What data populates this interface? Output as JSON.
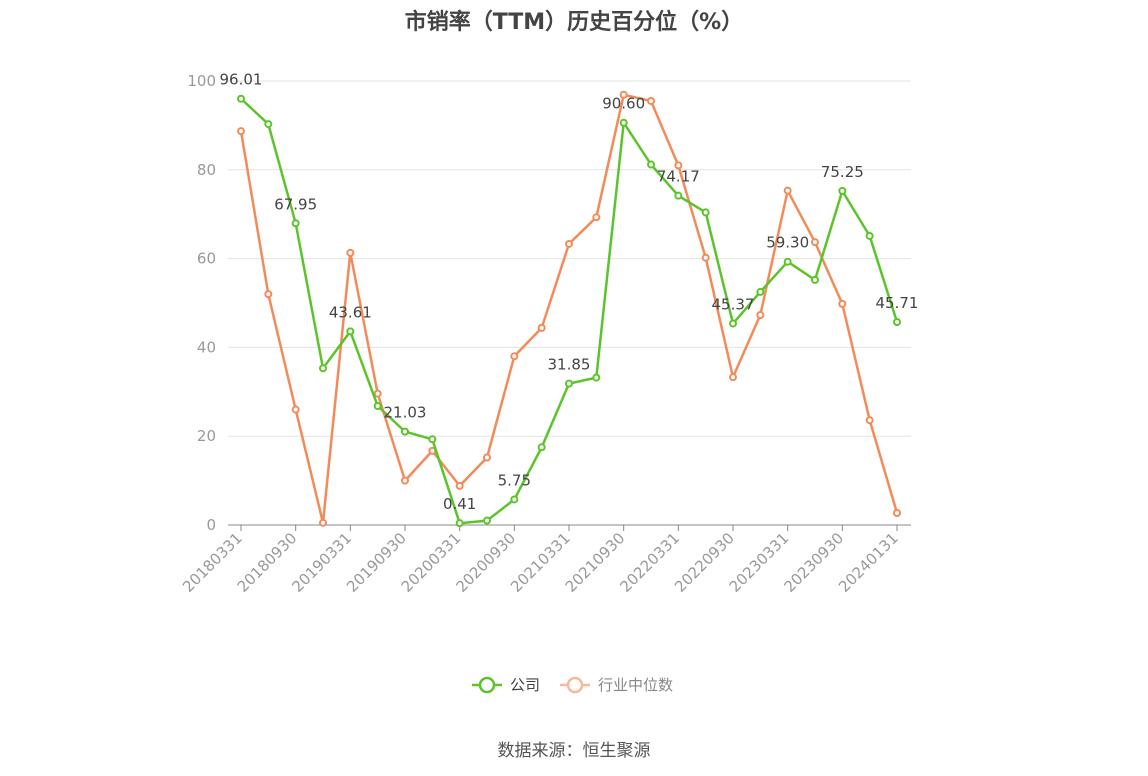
{
  "title": "市销率（TTM）历史百分位（%）",
  "source": "数据来源：恒生聚源",
  "chart_data": {
    "type": "line",
    "title": "市销率（TTM）历史百分位（%）",
    "ylim": [
      0,
      100
    ],
    "yticks": [
      0,
      20,
      40,
      60,
      80,
      100
    ],
    "grid": true,
    "legend_position": "bottom",
    "x": [
      "20180331",
      "20180630",
      "20180930",
      "20181231",
      "20190331",
      "20190630",
      "20190930",
      "20191231",
      "20200331",
      "20200630",
      "20200930",
      "20201231",
      "20210331",
      "20210630",
      "20210930",
      "20211231",
      "20220331",
      "20220630",
      "20220930",
      "20221231",
      "20230331",
      "20230630",
      "20230930",
      "20231231",
      "20240131"
    ],
    "xtick_labels": [
      "20180331",
      "20180930",
      "20190331",
      "20190930",
      "20200331",
      "20200930",
      "20210331",
      "20210930",
      "20220331",
      "20220930",
      "20230331",
      "20230930",
      "20240131"
    ],
    "series": [
      {
        "name": "公司",
        "color": "#5cc42b",
        "values": [
          96.01,
          90.3,
          67.95,
          35.3,
          43.61,
          26.8,
          21.03,
          19.3,
          0.41,
          1.0,
          5.75,
          17.5,
          31.85,
          33.2,
          90.6,
          81.2,
          74.17,
          70.4,
          45.37,
          52.5,
          59.3,
          55.2,
          75.25,
          65.1,
          45.71
        ],
        "labels": {
          "0": "96.01",
          "2": "67.95",
          "4": "43.61",
          "6": "21.03",
          "8": "0.41",
          "10": "5.75",
          "12": "31.85",
          "14": "90.60",
          "16": "74.17",
          "18": "45.37",
          "20": "59.30",
          "22": "75.25",
          "24": "45.71"
        }
      },
      {
        "name": "行业中位数",
        "color": "#f28b59",
        "values": [
          88.7,
          52.0,
          26.0,
          0.5,
          61.3,
          29.6,
          10.0,
          16.7,
          8.8,
          15.2,
          38.0,
          44.4,
          63.3,
          69.3,
          96.9,
          95.5,
          81.0,
          60.2,
          33.3,
          47.3,
          75.3,
          63.7,
          49.8,
          23.6,
          2.7
        ]
      }
    ]
  }
}
